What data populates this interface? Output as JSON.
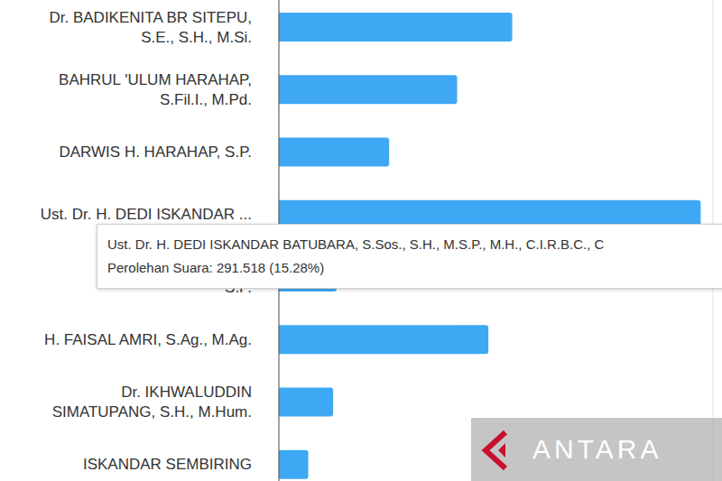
{
  "chart_data": {
    "type": "bar",
    "orientation": "horizontal",
    "categories": [
      "Dr. BADIKENITA BR SITEPU,\nS.E., S.H., M.Si.",
      "BAHRUL 'ULUM HARAHAP,\nS.Fil.I., M.Pd.",
      "DARWIS H. HARAHAP, S.P.",
      "Ust. Dr. H. DEDI ISKANDAR ...",
      "EMSAH\nS.P.",
      "H. FAISAL AMRI, S.Ag., M.Ag.",
      "Dr. IKHWALUDDIN\nSIMATUPANG, S.H., M.Hum.",
      "ISKANDAR SEMBIRING"
    ],
    "values": [
      161300,
      123200,
      76200,
      291518,
      40000,
      144800,
      37500,
      20300
    ],
    "color": "#3ea8f5",
    "xlim": [
      0,
      300000
    ],
    "xticks": [
      0,
      30000,
      60000,
      90000,
      120000,
      150000,
      180000,
      210000,
      240000,
      270000,
      300000
    ],
    "grid": true,
    "tick_labels": false,
    "annotations": [
      "Ust. Dr. H. DEDI ISKANDAR BATUBARA, S.Sos., S.H., M.S.P., M.H., C.I.R.B.C., C",
      "Perolehan Suara: 291.518 (15.28%)",
      "ANTARA"
    ]
  }
}
